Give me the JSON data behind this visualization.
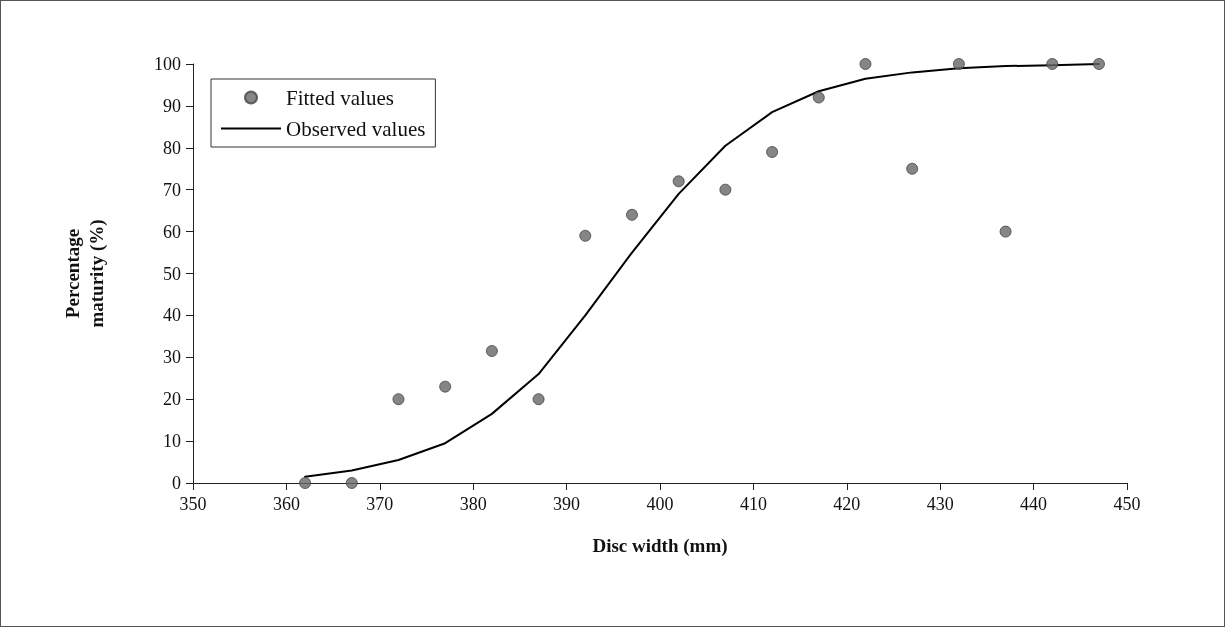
{
  "chart_data": {
    "type": "scatter",
    "xlabel": "Disc width (mm)",
    "ylabel": "Percentage\nmaturity (%)",
    "xlim": [
      350,
      450
    ],
    "xticks": [
      350,
      360,
      370,
      380,
      390,
      400,
      410,
      420,
      430,
      440,
      450
    ],
    "ylim": [
      0,
      100
    ],
    "yticks": [
      0,
      10,
      20,
      30,
      40,
      50,
      60,
      70,
      80,
      90,
      100
    ],
    "grid": false,
    "legend": "top left",
    "series": [
      {
        "name": "Fitted values",
        "marker": "circle",
        "color": "#666666",
        "x": [
          362,
          367,
          372,
          377,
          382,
          387,
          392,
          397,
          402,
          407,
          412,
          417,
          422,
          427,
          432,
          437,
          442,
          447
        ],
        "values": [
          0,
          0,
          20,
          23,
          31.5,
          20,
          59,
          64,
          72,
          70,
          79,
          92,
          100,
          75,
          100,
          60,
          100,
          100
        ]
      },
      {
        "name": "Observed values",
        "type": "line",
        "marker": "none",
        "line_style": "solid",
        "color": "#000000",
        "x": [
          362,
          367,
          372,
          377,
          382,
          387,
          392,
          397,
          402,
          407,
          412,
          417,
          422,
          427,
          432,
          437,
          442,
          447
        ],
        "values": [
          1.5,
          3,
          5.5,
          9.5,
          16.5,
          26,
          40,
          55,
          69,
          80.5,
          88.5,
          93.5,
          96.5,
          98,
          99,
          99.5,
          99.7,
          100
        ]
      }
    ]
  }
}
